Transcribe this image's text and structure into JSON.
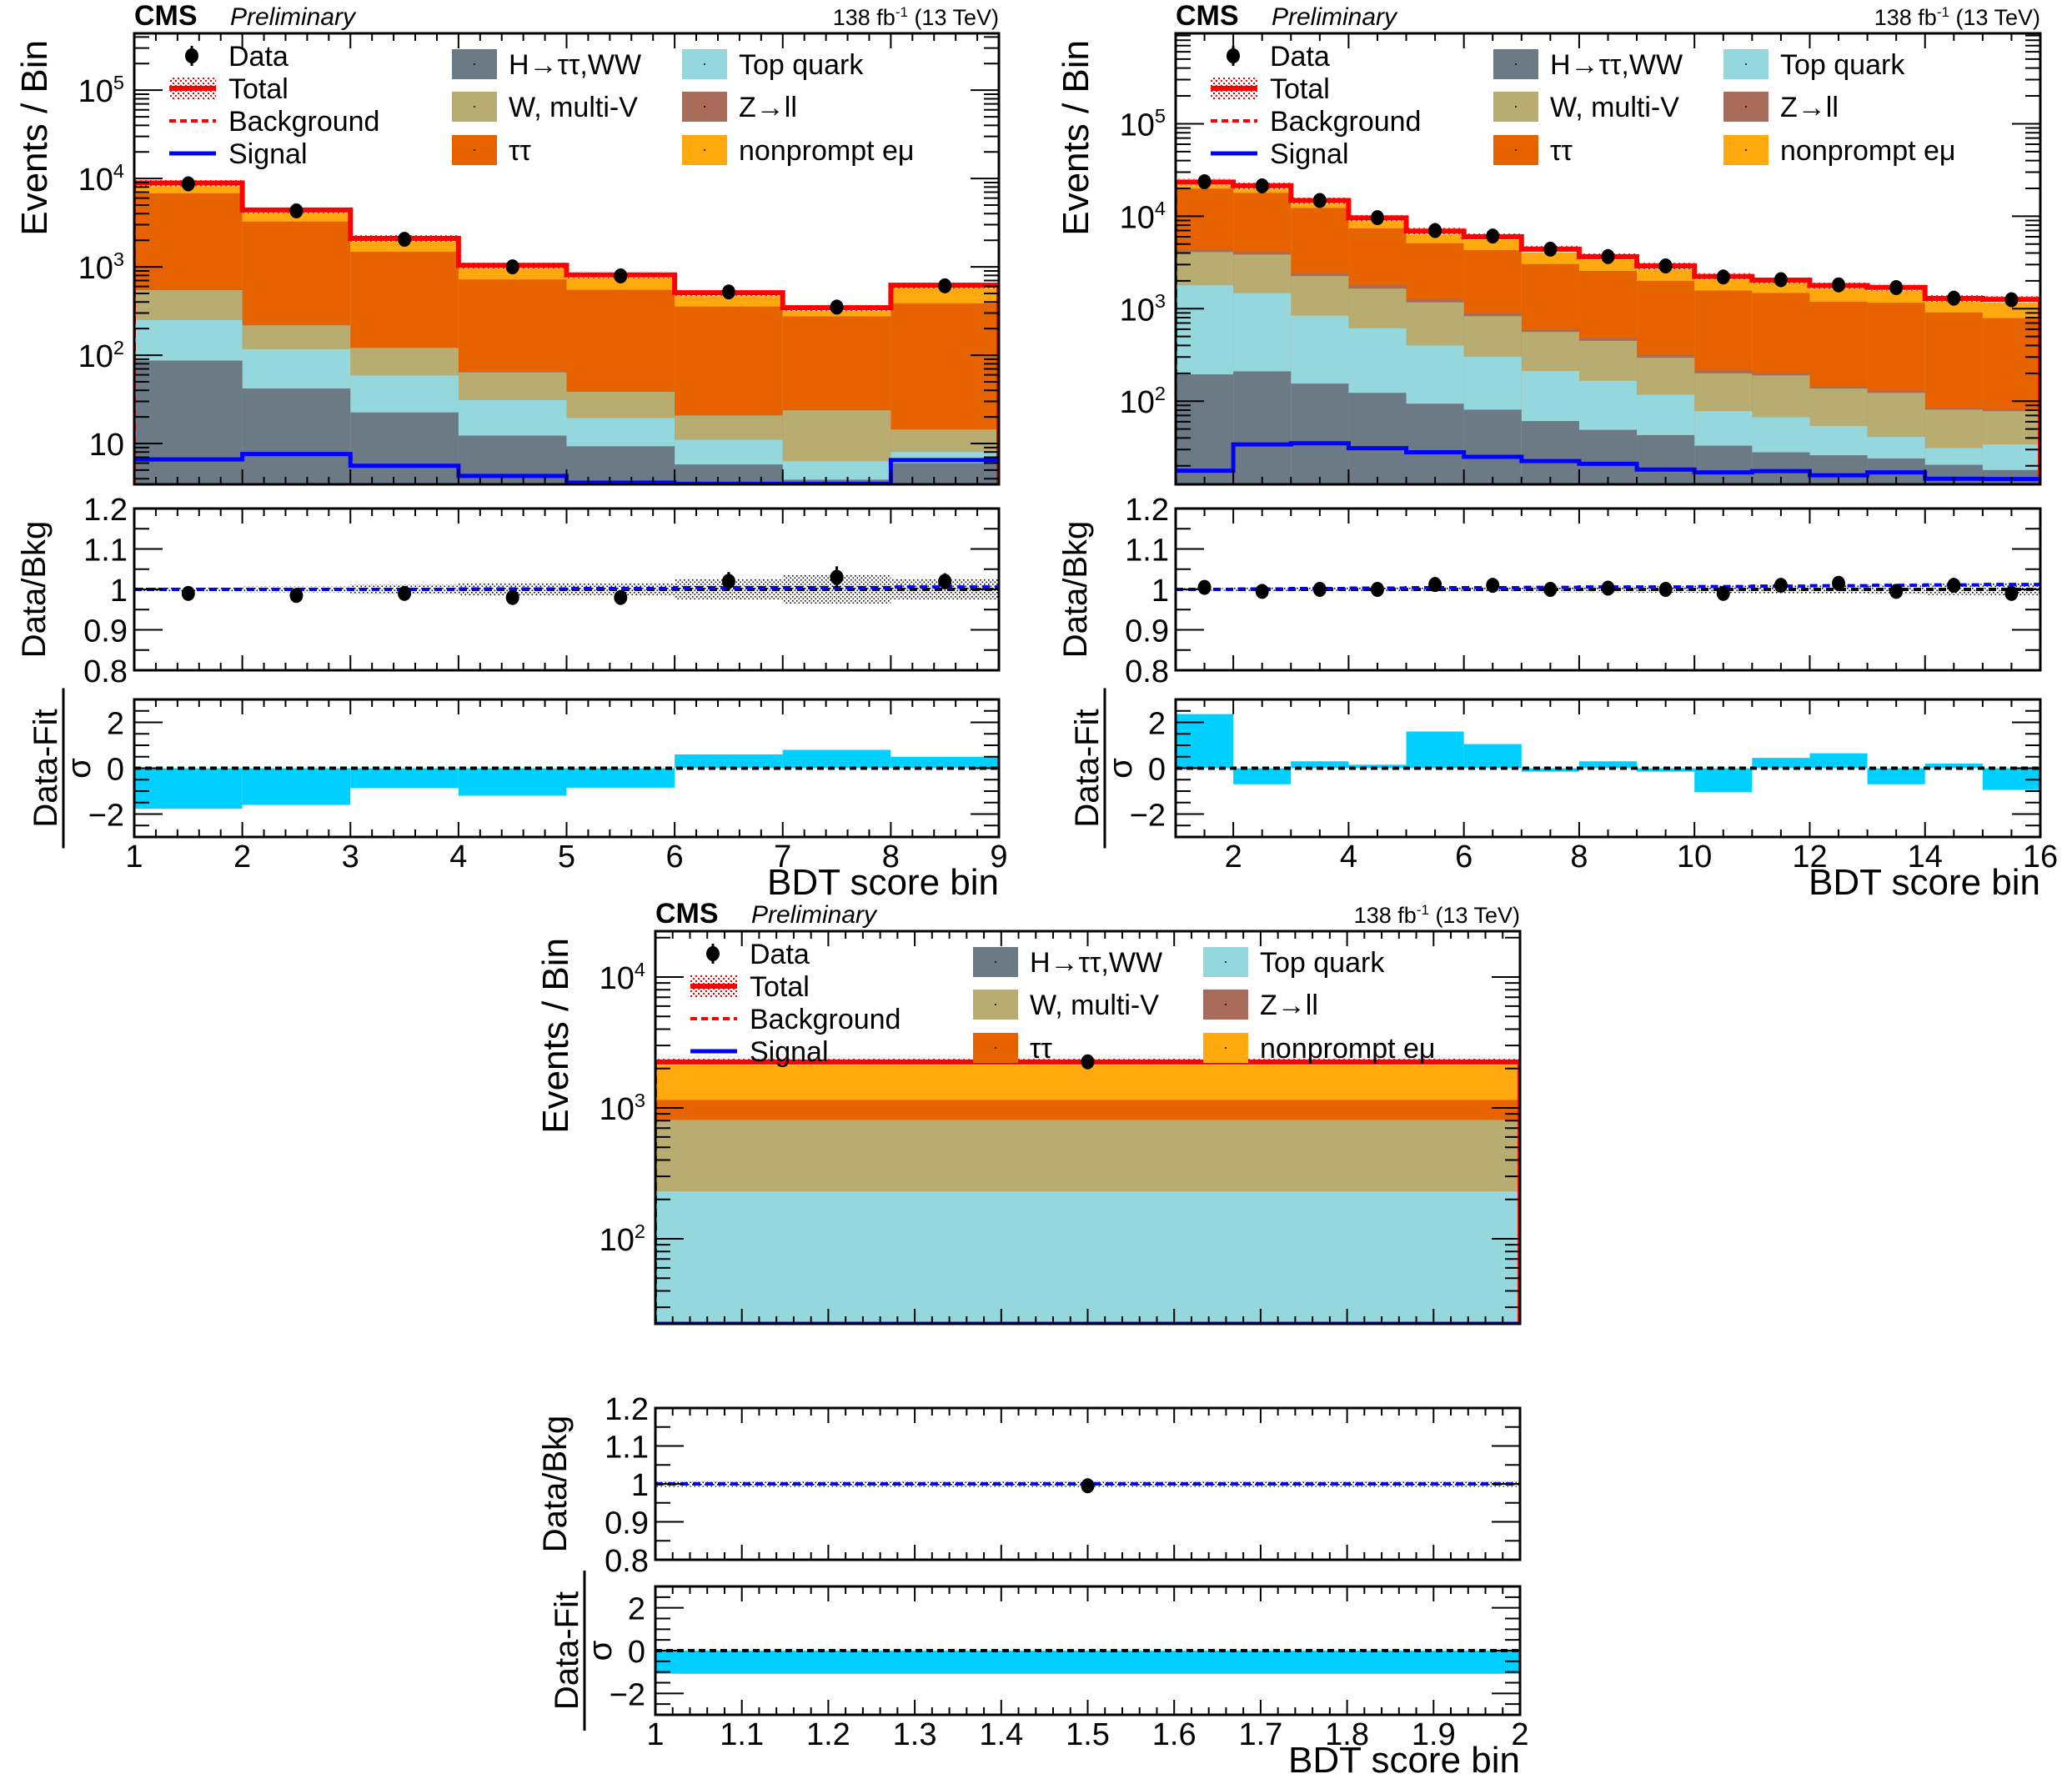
{
  "figure": {
    "experiment": "CMS",
    "status": "Preliminary",
    "lumi_label": "138 fb",
    "lumi_exponent": "-1",
    "energy_label": "(13 TeV)"
  },
  "legend": {
    "left": [
      {
        "key": "data",
        "label": "Data"
      },
      {
        "key": "total",
        "label": "Total"
      },
      {
        "key": "background",
        "label": "Background"
      },
      {
        "key": "signal",
        "label": "Signal"
      }
    ],
    "processes": [
      {
        "key": "htt_ww",
        "label": "H→ττ,WW",
        "color": "#6c7a86"
      },
      {
        "key": "top",
        "label": "Top quark",
        "color": "#94d8de"
      },
      {
        "key": "w_multiv",
        "label": "W, multi-V",
        "color": "#b9ac70"
      },
      {
        "key": "zll",
        "label": "Z→ll",
        "color": "#a96b59"
      },
      {
        "key": "tautau",
        "label": "ττ",
        "color": "#e76300"
      },
      {
        "key": "nonprompt",
        "label": "nonprompt eμ",
        "color": "#ffa90e"
      }
    ]
  },
  "colors": {
    "total_line": "#ff0000",
    "background_line": "#ff0000",
    "signal_line": "#0000ff",
    "data": "#000000",
    "pull_fill": "#00d0ff",
    "band": "#000000"
  },
  "chart_data": [
    {
      "type": "bar",
      "subtype": "stacked-histogram-log",
      "title": "CMS Preliminary",
      "xlabel": "BDT score bin",
      "ylabel": "Events / Bin",
      "xlim": [
        1,
        9
      ],
      "ylim": [
        3.45,
        440000
      ],
      "yscale": "log",
      "ytick_labels": [
        "10",
        "10^2",
        "10^3",
        "10^4",
        "10^5"
      ],
      "xtick_labels": [
        "1",
        "2",
        "3",
        "4",
        "5",
        "6",
        "7",
        "8",
        "9"
      ],
      "bin_edges": [
        1,
        2,
        3,
        4,
        5,
        6,
        7,
        8,
        9
      ],
      "stack_order": [
        "htt_ww",
        "top",
        "w_multiv",
        "zll",
        "tautau",
        "nonprompt"
      ],
      "stack_cumulative_tops": {
        "htt_ww": [
          87,
          42,
          22.5,
          12.3,
          9.3,
          5.8,
          3.9,
          6.0
        ],
        "top": [
          250,
          117,
          59,
          31,
          19.5,
          11,
          6.3,
          8
        ],
        "w_multiv": [
          545,
          218,
          121,
          64,
          38.5,
          20.8,
          23.8,
          14.4
        ],
        "zll": [
          550,
          220,
          122,
          65,
          39,
          21,
          24,
          14.5
        ],
        "tautau": [
          6800,
          3250,
          1480,
          720,
          550,
          355,
          275,
          385
        ],
        "nonprompt": [
          8900,
          4400,
          2100,
          1040,
          810,
          510,
          345,
          620
        ]
      },
      "total": [
        8900,
        4400,
        2100,
        1040,
        810,
        510,
        345,
        620
      ],
      "signal": [
        6.6,
        7.6,
        5.6,
        4.3,
        3.6,
        3.5,
        3.5,
        6.5
      ],
      "data": [
        8700,
        4300,
        2050,
        1000,
        790,
        520,
        350,
        610
      ],
      "ratio": {
        "ylabel": "Data/Bkg",
        "ylim": [
          0.8,
          1.2
        ],
        "ytick_labels": [
          "0.8",
          "0.9",
          "1",
          "1.1",
          "1.2"
        ],
        "values": [
          0.99,
          0.985,
          0.99,
          0.98,
          0.98,
          1.02,
          1.03,
          1.02
        ],
        "errors": [
          0.005,
          0.008,
          0.01,
          0.015,
          0.017,
          0.023,
          0.027,
          0.02
        ],
        "band": [
          0.006,
          0.007,
          0.012,
          0.016,
          0.015,
          0.025,
          0.035,
          0.025
        ],
        "signal_ratio": [
          1.0,
          1.0,
          1.0,
          1.001,
          1.002,
          1.004,
          1.004,
          1.006
        ]
      },
      "pull": {
        "ylabel_num": "Data-Fit",
        "ylabel_den": "σ",
        "ylim": [
          -3,
          3
        ],
        "ytick_labels": [
          "−2",
          "0",
          "2"
        ],
        "values": [
          -1.77,
          -1.6,
          -0.87,
          -1.2,
          -0.85,
          0.6,
          0.8,
          0.5
        ]
      }
    },
    {
      "type": "bar",
      "subtype": "stacked-histogram-log",
      "title": "CMS Preliminary",
      "xlabel": "BDT score bin",
      "ylabel": "Events / Bin",
      "xlim": [
        1,
        16
      ],
      "ylim": [
        12.6,
        950000
      ],
      "yscale": "log",
      "ytick_labels": [
        "10^2",
        "10^3",
        "10^4",
        "10^5"
      ],
      "xtick_labels": [
        "2",
        "4",
        "6",
        "8",
        "10",
        "12",
        "14",
        "16"
      ],
      "bin_edges": [
        1,
        2,
        3,
        4,
        5,
        6,
        7,
        8,
        9,
        10,
        11,
        12,
        13,
        14,
        15,
        16
      ],
      "stack_order": [
        "htt_ww",
        "top",
        "w_multiv",
        "zll",
        "tautau",
        "nonprompt"
      ],
      "stack_cumulative_tops": {
        "htt_ww": [
          195,
          210,
          155,
          123,
          94,
          81,
          61,
          49,
          43,
          33,
          28,
          26,
          24,
          20.5,
          18
        ],
        "top": [
          1790,
          1470,
          840,
          615,
          400,
          302,
          212,
          166,
          117,
          78,
          67,
          54,
          41,
          31,
          34
        ],
        "w_multiv": [
          4100,
          3850,
          2250,
          1650,
          1170,
          830,
          560,
          450,
          295,
          200,
          190,
          137,
          123,
          81,
          78
        ],
        "zll": [
          4350,
          4100,
          2450,
          1790,
          1270,
          900,
          600,
          485,
          315,
          215,
          203,
          145,
          130,
          85,
          81
        ],
        "tautau": [
          19900,
          17900,
          12300,
          7400,
          5100,
          4300,
          3040,
          2560,
          2000,
          1570,
          1480,
          1190,
          1160,
          910,
          790
        ],
        "nonprompt": [
          23400,
          21400,
          14800,
          9600,
          6900,
          6000,
          4400,
          3650,
          2900,
          2230,
          2040,
          1780,
          1700,
          1290,
          1260
        ]
      },
      "total": [
        23400,
        21400,
        14800,
        9600,
        6900,
        6000,
        4400,
        3650,
        2900,
        2230,
        2040,
        1780,
        1700,
        1290,
        1260
      ],
      "signal": [
        17.7,
        34,
        35,
        31,
        28,
        25,
        22.5,
        21,
        18.2,
        17,
        17.5,
        15.8,
        17,
        14.5,
        14.4
      ],
      "data": [
        23600,
        21300,
        14800,
        9650,
        7000,
        6100,
        4400,
        3660,
        2900,
        2200,
        2060,
        1810,
        1690,
        1300,
        1250
      ],
      "ratio": {
        "ylabel": "Data/Bkg",
        "ylim": [
          0.8,
          1.2
        ],
        "ytick_labels": [
          "0.8",
          "0.9",
          "1",
          "1.1",
          "1.2"
        ],
        "values": [
          1.005,
          0.995,
          1.0,
          1.0,
          1.012,
          1.01,
          1.0,
          1.003,
          1.0,
          0.99,
          1.01,
          1.015,
          0.995,
          1.01,
          0.99
        ],
        "errors": [
          0.006,
          0.007,
          0.008,
          0.009,
          0.01,
          0.01,
          0.011,
          0.012,
          0.012,
          0.013,
          0.013,
          0.014,
          0.014,
          0.016,
          0.016
        ],
        "band": [
          0.003,
          0.004,
          0.004,
          0.005,
          0.006,
          0.006,
          0.007,
          0.007,
          0.008,
          0.009,
          0.01,
          0.011,
          0.012,
          0.014,
          0.015
        ],
        "signal_ratio": [
          1.0,
          1.001,
          1.002,
          1.003,
          1.004,
          1.004,
          1.005,
          1.006,
          1.006,
          1.007,
          1.008,
          1.009,
          1.01,
          1.011,
          1.012
        ]
      },
      "pull": {
        "ylabel_num": "Data-Fit",
        "ylabel_den": "σ",
        "ylim": [
          -3,
          3
        ],
        "ytick_labels": [
          "−2",
          "0",
          "2"
        ],
        "values": [
          2.36,
          -0.7,
          0.3,
          0.15,
          1.6,
          1.05,
          -0.15,
          0.3,
          -0.15,
          -1.05,
          0.45,
          0.65,
          -0.7,
          0.2,
          -0.95
        ]
      }
    },
    {
      "type": "bar",
      "subtype": "stacked-histogram-log",
      "title": "CMS Preliminary",
      "xlabel": "BDT score bin",
      "ylabel": "Events / Bin",
      "xlim": [
        1,
        2
      ],
      "ylim": [
        22.4,
        22400
      ],
      "yscale": "log",
      "ytick_labels": [
        "10^2",
        "10^3",
        "10^4"
      ],
      "xtick_labels": [
        "1",
        "1.1",
        "1.2",
        "1.3",
        "1.4",
        "1.5",
        "1.6",
        "1.7",
        "1.8",
        "1.9",
        "2"
      ],
      "bin_edges": [
        1,
        2
      ],
      "stack_order": [
        "htt_ww",
        "top",
        "w_multiv",
        "zll",
        "tautau",
        "nonprompt"
      ],
      "stack_cumulative_tops": {
        "htt_ww": [
          22.4
        ],
        "top": [
          230
        ],
        "w_multiv": [
          810
        ],
        "zll": [
          810
        ],
        "tautau": [
          1150
        ],
        "nonprompt": [
          2240
        ]
      },
      "total": [
        2240
      ],
      "signal": [
        22.4
      ],
      "data": [
        2250
      ],
      "ratio": {
        "ylabel": "Data/Bkg",
        "ylim": [
          0.8,
          1.2
        ],
        "ytick_labels": [
          "0.8",
          "0.9",
          "1",
          "1.1",
          "1.2"
        ],
        "values": [
          0.995
        ],
        "errors": [
          0.008
        ],
        "band": [
          0.008
        ],
        "signal_ratio": [
          1.0
        ]
      },
      "pull": {
        "ylabel_num": "Data-Fit",
        "ylabel_den": "σ",
        "ylim": [
          -3,
          3
        ],
        "ytick_labels": [
          "−2",
          "0",
          "2"
        ],
        "values": [
          -1.08
        ]
      }
    }
  ]
}
